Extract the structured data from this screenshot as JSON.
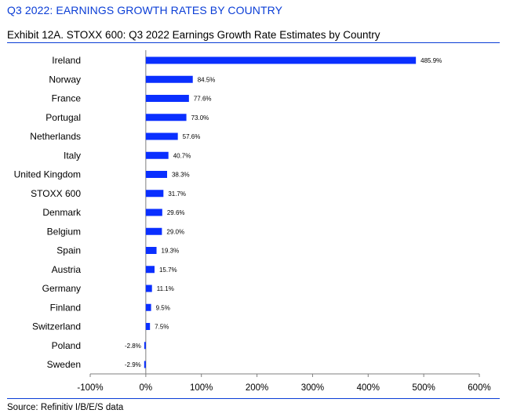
{
  "header": {
    "section_title": "Q3 2022: EARNINGS GROWTH RATES BY COUNTRY",
    "exhibit_title": "Exhibit 12A.  STOXX 600: Q3 2022 Earnings Growth Rate Estimates by Country"
  },
  "footer": {
    "source": "Source: Refinitiv I/B/E/S data"
  },
  "colors": {
    "bar": "#0a2fff",
    "accent": "#0a3dd6"
  },
  "chart_data": {
    "type": "bar",
    "orientation": "horizontal",
    "title": "STOXX 600: Q3 2022 Earnings Growth Rate Estimates by Country",
    "xlabel": "",
    "ylabel": "",
    "xlim": [
      -100,
      600
    ],
    "x_ticks": [
      -100,
      0,
      100,
      200,
      300,
      400,
      500,
      600
    ],
    "x_tick_labels": [
      "-100%",
      "0%",
      "100%",
      "200%",
      "300%",
      "400%",
      "500%",
      "600%"
    ],
    "grid": false,
    "legend": "none",
    "categories": [
      "Ireland",
      "Norway",
      "France",
      "Portugal",
      "Netherlands",
      "Italy",
      "United Kingdom",
      "STOXX 600",
      "Denmark",
      "Belgium",
      "Spain",
      "Austria",
      "Germany",
      "Finland",
      "Switzerland",
      "Poland",
      "Sweden"
    ],
    "values": [
      485.9,
      84.5,
      77.6,
      73.0,
      57.6,
      40.7,
      38.3,
      31.7,
      29.6,
      29.0,
      19.3,
      15.7,
      11.1,
      9.5,
      7.5,
      -2.8,
      -2.9
    ],
    "value_labels": [
      "485.9%",
      "84.5%",
      "77.6%",
      "73.0%",
      "57.6%",
      "40.7%",
      "38.3%",
      "31.7%",
      "29.6%",
      "29.0%",
      "19.3%",
      "15.7%",
      "11.1%",
      "9.5%",
      "7.5%",
      "-2.8%",
      "-2.9%"
    ]
  }
}
